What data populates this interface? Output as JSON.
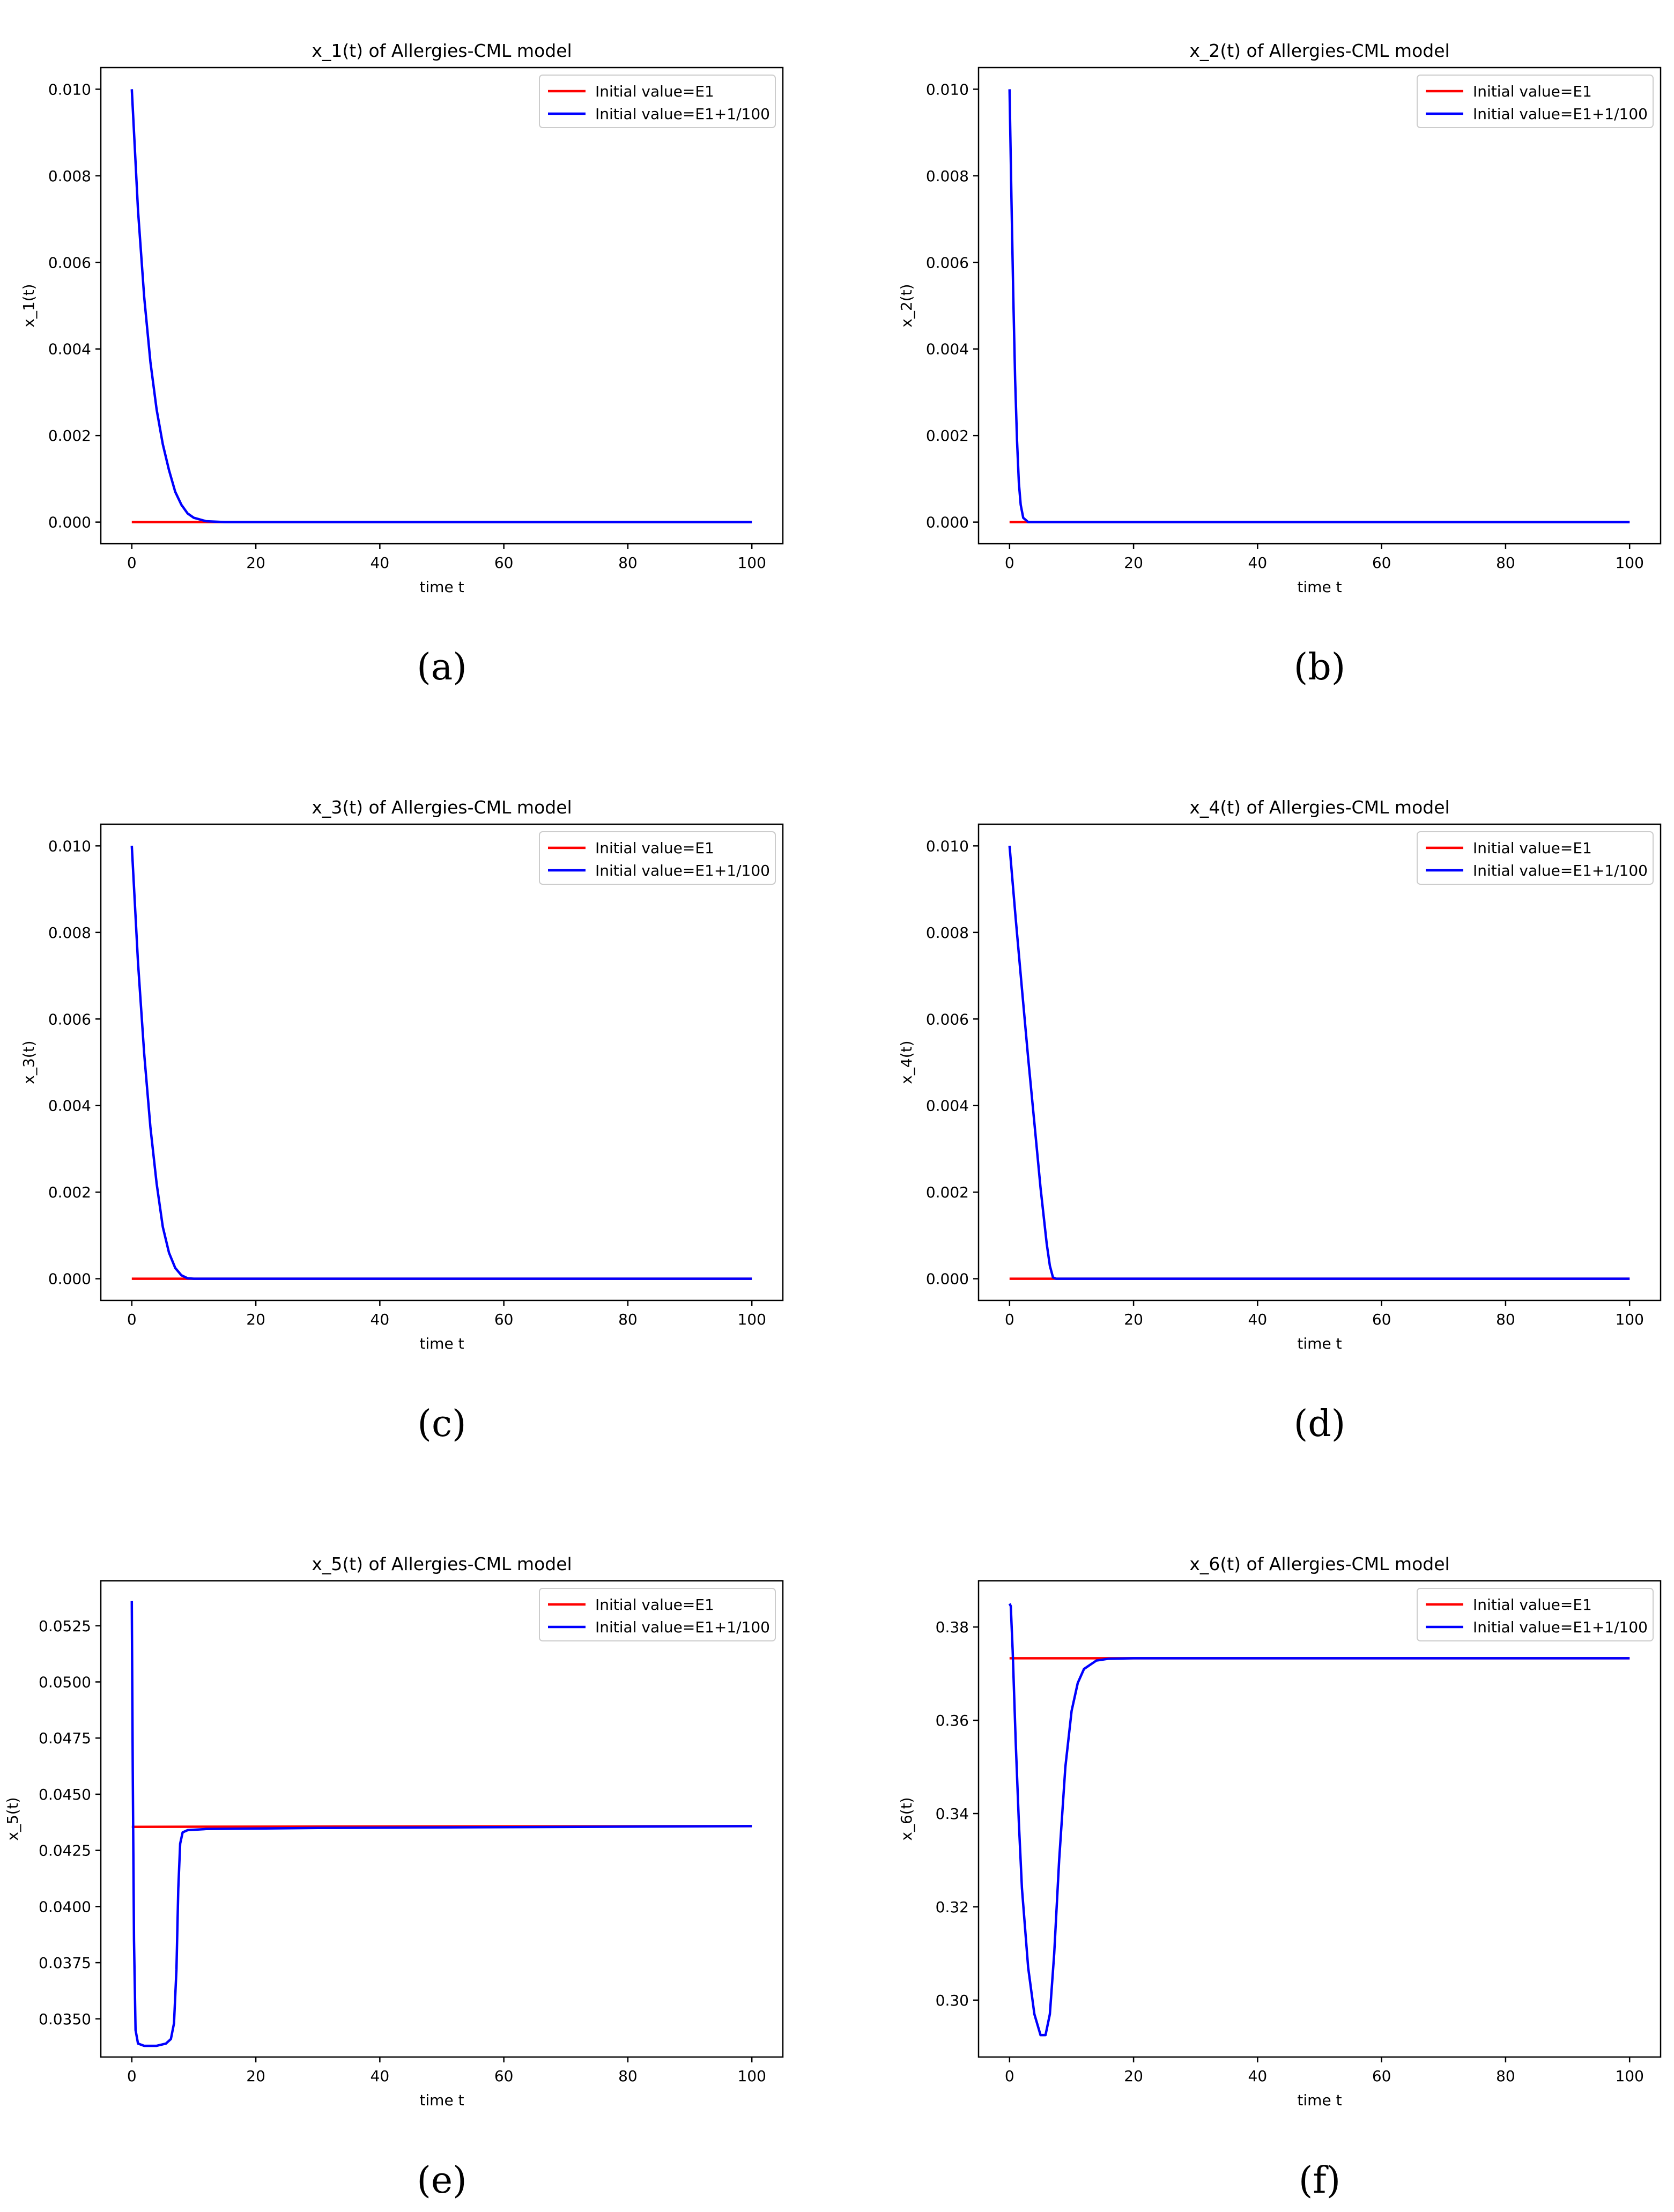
{
  "colors": {
    "series_e1": "#ff0000",
    "series_perturbed": "#0000ff",
    "axes": "#000000",
    "background": "#ffffff"
  },
  "chart_data": [
    {
      "panel": "(a)",
      "type": "line",
      "title": "x_1(t) of Allergies-CML model",
      "xlabel": "time t",
      "ylabel": "x_1(t)",
      "xlim": [
        -5,
        105
      ],
      "ylim": [
        -0.0005,
        0.0105
      ],
      "xticks": [
        "0",
        "20",
        "40",
        "60",
        "80",
        "100"
      ],
      "yticks": [
        "0.000",
        "0.002",
        "0.004",
        "0.006",
        "0.008",
        "0.010"
      ],
      "grid": false,
      "legend_position": "top-right",
      "series": [
        {
          "name": "Initial value=E1",
          "color": "#ff0000",
          "points": [
            [
              0,
              0
            ],
            [
              100,
              0
            ]
          ]
        },
        {
          "name": "Initial value=E1+1/100",
          "color": "#0000ff",
          "points": [
            [
              0,
              0.01
            ],
            [
              1,
              0.0072
            ],
            [
              2,
              0.0052
            ],
            [
              3,
              0.0037
            ],
            [
              4,
              0.0026
            ],
            [
              5,
              0.0018
            ],
            [
              6,
              0.0012
            ],
            [
              7,
              0.0007
            ],
            [
              8,
              0.0004
            ],
            [
              9,
              0.0002
            ],
            [
              10,
              0.0001
            ],
            [
              12,
              2e-05
            ],
            [
              15,
              0
            ],
            [
              100,
              0
            ]
          ]
        }
      ]
    },
    {
      "panel": "(b)",
      "type": "line",
      "title": "x_2(t) of Allergies-CML model",
      "xlabel": "time t",
      "ylabel": "x_2(t)",
      "xlim": [
        -5,
        105
      ],
      "ylim": [
        -0.0005,
        0.0105
      ],
      "xticks": [
        "0",
        "20",
        "40",
        "60",
        "80",
        "100"
      ],
      "yticks": [
        "0.000",
        "0.002",
        "0.004",
        "0.006",
        "0.008",
        "0.010"
      ],
      "grid": false,
      "legend_position": "top-right",
      "series": [
        {
          "name": "Initial value=E1",
          "color": "#ff0000",
          "points": [
            [
              0,
              0
            ],
            [
              100,
              0
            ]
          ]
        },
        {
          "name": "Initial value=E1+1/100",
          "color": "#0000ff",
          "points": [
            [
              0,
              0.01
            ],
            [
              0.3,
              0.0075
            ],
            [
              0.6,
              0.0052
            ],
            [
              0.9,
              0.0033
            ],
            [
              1.2,
              0.0019
            ],
            [
              1.5,
              0.0009
            ],
            [
              1.8,
              0.0004
            ],
            [
              2.2,
              0.0001
            ],
            [
              3,
              0
            ],
            [
              100,
              0
            ]
          ]
        }
      ]
    },
    {
      "panel": "(c)",
      "type": "line",
      "title": "x_3(t) of Allergies-CML model",
      "xlabel": "time t",
      "ylabel": "x_3(t)",
      "xlim": [
        -5,
        105
      ],
      "ylim": [
        -0.0005,
        0.0105
      ],
      "xticks": [
        "0",
        "20",
        "40",
        "60",
        "80",
        "100"
      ],
      "yticks": [
        "0.000",
        "0.002",
        "0.004",
        "0.006",
        "0.008",
        "0.010"
      ],
      "grid": false,
      "legend_position": "top-right",
      "series": [
        {
          "name": "Initial value=E1",
          "color": "#ff0000",
          "points": [
            [
              0,
              0
            ],
            [
              100,
              0
            ]
          ]
        },
        {
          "name": "Initial value=E1+1/100",
          "color": "#0000ff",
          "points": [
            [
              0,
              0.01
            ],
            [
              1,
              0.0073
            ],
            [
              2,
              0.0052
            ],
            [
              3,
              0.0035
            ],
            [
              4,
              0.0022
            ],
            [
              5,
              0.0012
            ],
            [
              6,
              0.0006
            ],
            [
              7,
              0.00025
            ],
            [
              8,
              8e-05
            ],
            [
              9,
              1e-05
            ],
            [
              10,
              0
            ],
            [
              100,
              0
            ]
          ]
        }
      ]
    },
    {
      "panel": "(d)",
      "type": "line",
      "title": "x_4(t) of Allergies-CML model",
      "xlabel": "time t",
      "ylabel": "x_4(t)",
      "xlim": [
        -5,
        105
      ],
      "ylim": [
        -0.0005,
        0.0105
      ],
      "xticks": [
        "0",
        "20",
        "40",
        "60",
        "80",
        "100"
      ],
      "yticks": [
        "0.000",
        "0.002",
        "0.004",
        "0.006",
        "0.008",
        "0.010"
      ],
      "grid": false,
      "legend_position": "top-right",
      "series": [
        {
          "name": "Initial value=E1",
          "color": "#ff0000",
          "points": [
            [
              0,
              0
            ],
            [
              100,
              0
            ]
          ]
        },
        {
          "name": "Initial value=E1+1/100",
          "color": "#0000ff",
          "points": [
            [
              0,
              0.01
            ],
            [
              1,
              0.0083
            ],
            [
              2,
              0.0067
            ],
            [
              3,
              0.0051
            ],
            [
              4,
              0.0036
            ],
            [
              5,
              0.0021
            ],
            [
              6,
              0.0008
            ],
            [
              6.5,
              0.0003
            ],
            [
              7,
              3e-05
            ],
            [
              7.5,
              0
            ],
            [
              100,
              0
            ]
          ]
        }
      ]
    },
    {
      "panel": "(e)",
      "type": "line",
      "title": "x_5(t) of Allergies-CML model",
      "xlabel": "time t",
      "ylabel": "x_5(t)",
      "xlim": [
        -5,
        105
      ],
      "ylim": [
        0.0333,
        0.0545
      ],
      "xticks": [
        "0",
        "20",
        "40",
        "60",
        "80",
        "100"
      ],
      "yticks": [
        "0.0350",
        "0.0375",
        "0.0400",
        "0.0425",
        "0.0450",
        "0.0475",
        "0.0500",
        "0.0525"
      ],
      "grid": false,
      "legend_position": "top-right",
      "series": [
        {
          "name": "Initial value=E1",
          "color": "#ff0000",
          "points": [
            [
              0,
              0.04355
            ],
            [
              100,
              0.04358
            ]
          ]
        },
        {
          "name": "Initial value=E1+1/100",
          "color": "#0000ff",
          "points": [
            [
              0,
              0.0536
            ],
            [
              0.15,
              0.046
            ],
            [
              0.35,
              0.0385
            ],
            [
              0.6,
              0.0345
            ],
            [
              1,
              0.0339
            ],
            [
              2,
              0.0338
            ],
            [
              4,
              0.0338
            ],
            [
              5.5,
              0.0339
            ],
            [
              6.3,
              0.0341
            ],
            [
              6.8,
              0.0348
            ],
            [
              7.2,
              0.0372
            ],
            [
              7.5,
              0.0408
            ],
            [
              7.8,
              0.0428
            ],
            [
              8.2,
              0.0433
            ],
            [
              9,
              0.0434
            ],
            [
              12,
              0.04345
            ],
            [
              30,
              0.0435
            ],
            [
              100,
              0.04358
            ]
          ]
        }
      ]
    },
    {
      "panel": "(f)",
      "type": "line",
      "title": "x_6(t) of Allergies-CML model",
      "xlabel": "time t",
      "ylabel": "x_6(t)",
      "xlim": [
        -5,
        105
      ],
      "ylim": [
        0.2878,
        0.3899
      ],
      "xticks": [
        "0",
        "20",
        "40",
        "60",
        "80",
        "100"
      ],
      "yticks": [
        "0.30",
        "0.32",
        "0.34",
        "0.36",
        "0.38"
      ],
      "grid": false,
      "legend_position": "top-right",
      "series": [
        {
          "name": "Initial value=E1",
          "color": "#ff0000",
          "points": [
            [
              0,
              0.3733
            ],
            [
              100,
              0.3733
            ]
          ]
        },
        {
          "name": "Initial value=E1+1/100",
          "color": "#0000ff",
          "points": [
            [
              0,
              0.385
            ],
            [
              0.2,
              0.3845
            ],
            [
              0.5,
              0.375
            ],
            [
              1,
              0.355
            ],
            [
              1.5,
              0.338
            ],
            [
              2,
              0.324
            ],
            [
              3,
              0.307
            ],
            [
              4,
              0.297
            ],
            [
              5,
              0.2925
            ],
            [
              5.8,
              0.2925
            ],
            [
              6.5,
              0.297
            ],
            [
              7.2,
              0.31
            ],
            [
              8,
              0.33
            ],
            [
              9,
              0.35
            ],
            [
              10,
              0.362
            ],
            [
              11,
              0.368
            ],
            [
              12,
              0.371
            ],
            [
              14,
              0.3728
            ],
            [
              16,
              0.3732
            ],
            [
              20,
              0.3733
            ],
            [
              100,
              0.3733
            ]
          ]
        }
      ]
    }
  ],
  "captions": [
    "(a)",
    "(b)",
    "(c)",
    "(d)",
    "(e)",
    "(f)"
  ]
}
